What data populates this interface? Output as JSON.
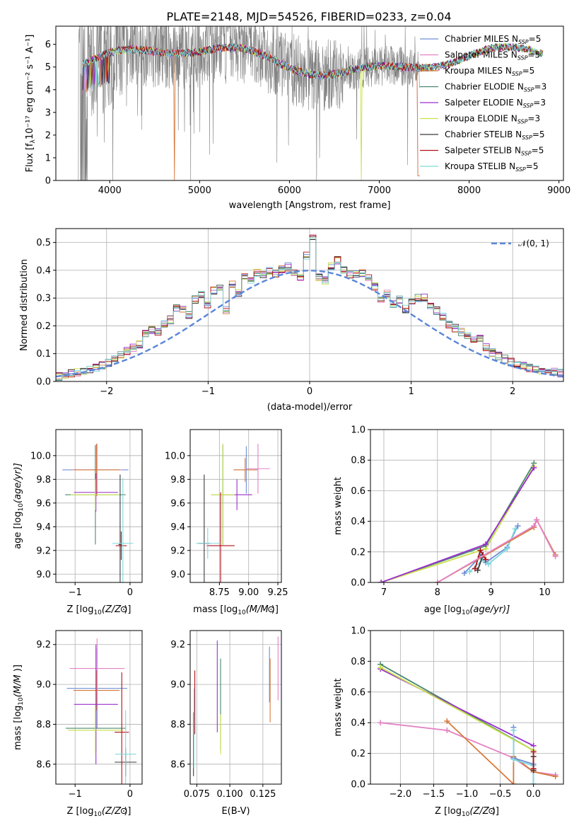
{
  "figure": {
    "title": "PLATE=2148, MJD=54526, FIBERID=0233, z=0.04"
  },
  "models": [
    {
      "name": "Chabrier MILES",
      "nssp": "5",
      "color": "#6d8fd8"
    },
    {
      "name": "Salpeter MILES",
      "nssp": "5",
      "color": "#e482c5"
    },
    {
      "name": "Kroupa MILES",
      "nssp": "5",
      "color": "#d7793a"
    },
    {
      "name": "Chabrier ELODIE",
      "nssp": "3",
      "color": "#4a8a70"
    },
    {
      "name": "Salpeter ELODIE",
      "nssp": "3",
      "color": "#9b2fcf"
    },
    {
      "name": "Kroupa ELODIE",
      "nssp": "3",
      "color": "#c9e04a"
    },
    {
      "name": "Chabrier STELIB",
      "nssp": "5",
      "color": "#3a3a3a"
    },
    {
      "name": "Salpeter STELIB",
      "nssp": "5",
      "color": "#b0101a"
    },
    {
      "name": "Kroupa STELIB",
      "nssp": "5",
      "color": "#7fd8dc"
    }
  ],
  "chart_data": [
    {
      "id": "spectrum",
      "type": "line",
      "title": "PLATE=2148, MJD=54526, FIBERID=0233, z=0.04",
      "xlabel": "wavelength [Angstrom, rest frame]",
      "ylabel_main": "Flux [f",
      "ylabel_sub": "λ",
      "ylabel_rest": "10⁻¹⁷ erg cm⁻² s⁻¹ A⁻¹]",
      "xlim": [
        3400,
        9050
      ],
      "ylim": [
        0,
        6.8
      ],
      "xticks": [
        "4000",
        "5000",
        "6000",
        "7000",
        "8000",
        "9000"
      ],
      "xtick_values": [
        4000,
        5000,
        6000,
        7000,
        8000,
        9000
      ],
      "yticks": [
        "0",
        "1",
        "2",
        "3",
        "4",
        "5",
        "6"
      ],
      "ytick_values": [
        0,
        1,
        2,
        3,
        4,
        5,
        6
      ],
      "data_color": "#808080",
      "data_range": [
        3650,
        7450
      ],
      "model_range": [
        3700,
        8820
      ],
      "legend_position": "upper right"
    },
    {
      "id": "residuals",
      "type": "line",
      "xlabel": "(data-model)/error",
      "ylabel": "Normed distribution",
      "xlim": [
        -2.5,
        2.5
      ],
      "ylim": [
        0,
        0.55
      ],
      "xticks": [
        "−2",
        "−1",
        "0",
        "1",
        "2"
      ],
      "xtick_values": [
        -2,
        -1,
        0,
        1,
        2
      ],
      "yticks": [
        "0.0",
        "0.1",
        "0.2",
        "0.3",
        "0.4",
        "0.5"
      ],
      "ytick_values": [
        0,
        0.1,
        0.2,
        0.3,
        0.4,
        0.5
      ],
      "bin_width": 0.1,
      "bin_start": -2.5,
      "histogram_reference": [
        0.018,
        0.022,
        0.03,
        0.033,
        0.036,
        0.04,
        0.048,
        0.058,
        0.066,
        0.078,
        0.094,
        0.108,
        0.122,
        0.132,
        0.172,
        0.185,
        0.178,
        0.205,
        0.222,
        0.262,
        0.255,
        0.236,
        0.295,
        0.312,
        0.278,
        0.326,
        0.342,
        0.258,
        0.35,
        0.318,
        0.376,
        0.36,
        0.392,
        0.382,
        0.398,
        0.388,
        0.402,
        0.412,
        0.392,
        0.375,
        0.452,
        0.52,
        0.372,
        0.362,
        0.412,
        0.435,
        0.398,
        0.386,
        0.384,
        0.388,
        0.372,
        0.342,
        0.298,
        0.315,
        0.278,
        0.294,
        0.262,
        0.282,
        0.3,
        0.302,
        0.268,
        0.255,
        0.232,
        0.205,
        0.192,
        0.178,
        0.164,
        0.15,
        0.152,
        0.125,
        0.103,
        0.092,
        0.08,
        0.07,
        0.062,
        0.058,
        0.05,
        0.045,
        0.04,
        0.038,
        0.034,
        0.03
      ],
      "gaussian_label": "𝒩(0, 1)",
      "gaussian_color": "#5b86d8",
      "legend_position": "upper right"
    },
    {
      "id": "age_vs_Z",
      "type": "scatter",
      "xlabel_main": "Z [log",
      "xlabel_sub": "10",
      "xlabel_rest": "(Z/Z",
      "xlabel_end": ")]",
      "ylabel_main": "age  [log",
      "ylabel_sub": "10",
      "ylabel_rest": "(age/yr)]",
      "xlim": [
        -1.35,
        0.22
      ],
      "ylim": [
        8.93,
        10.22
      ],
      "xticks": [
        "−1",
        "0"
      ],
      "xtick_values": [
        -1,
        0
      ],
      "yticks": [
        "9.0",
        "9.2",
        "9.4",
        "9.6",
        "9.8",
        "10.0"
      ],
      "ytick_values": [
        9.0,
        9.2,
        9.4,
        9.6,
        9.8,
        10.0
      ],
      "points": [
        {
          "model": 0,
          "x": -0.63,
          "xerr": 0.6,
          "y": 9.88,
          "yerr": 0.2
        },
        {
          "model": 1,
          "x": -0.6,
          "xerr": 0.45,
          "y": 9.88,
          "yerr": 0.22
        },
        {
          "model": 2,
          "x": -0.61,
          "xerr": 0.42,
          "y": 9.88,
          "yerr": 0.22
        },
        {
          "model": 3,
          "x": -0.63,
          "xerr": 0.55,
          "y": 9.67,
          "yerr": 0.42
        },
        {
          "model": 4,
          "x": -0.62,
          "xerr": 0.4,
          "y": 9.69,
          "yerr": 0.16
        },
        {
          "model": 5,
          "x": -0.63,
          "xerr": 0.45,
          "y": 9.67,
          "yerr": 0.13
        },
        {
          "model": 6,
          "x": -0.18,
          "xerr": 0.03,
          "y": 9.25,
          "yerr": 0.59
        },
        {
          "model": 7,
          "x": -0.16,
          "xerr": 0.1,
          "y": 9.24,
          "yerr": 0.12
        },
        {
          "model": 8,
          "x": -0.13,
          "xerr": 0.19,
          "y": 9.26,
          "yerr": 0.55
        }
      ]
    },
    {
      "id": "age_vs_mass",
      "type": "scatter",
      "xlabel_main": "mass [log",
      "xlabel_sub": "10",
      "xlabel_rest": "(M/M",
      "xlabel_end": ")]",
      "xlim": [
        8.5,
        9.28
      ],
      "ylim": [
        8.93,
        10.22
      ],
      "xticks": [
        "8.75",
        "9.00",
        "9.25"
      ],
      "xtick_values": [
        8.75,
        9.0,
        9.25
      ],
      "yticks": [
        "9.0",
        "9.2",
        "9.4",
        "9.6",
        "9.8",
        "10.0"
      ],
      "ytick_values": [
        9.0,
        9.2,
        9.4,
        9.6,
        9.8,
        10.0
      ],
      "points": [
        {
          "model": 0,
          "x": 8.98,
          "xerr": 0.1,
          "y": 9.88,
          "yerr": 0.2
        },
        {
          "model": 1,
          "x": 9.08,
          "xerr": 0.1,
          "y": 9.89,
          "yerr": 0.21
        },
        {
          "model": 2,
          "x": 8.97,
          "xerr": 0.1,
          "y": 9.88,
          "yerr": 0.1
        },
        {
          "model": 3,
          "x": 8.78,
          "xerr": 0.1,
          "y": 9.67,
          "yerr": 0.42
        },
        {
          "model": 4,
          "x": 8.9,
          "xerr": 0.13,
          "y": 9.67,
          "yerr": 0.13
        },
        {
          "model": 5,
          "x": 8.78,
          "xerr": 0.1,
          "y": 9.67,
          "yerr": 0.43
        },
        {
          "model": 6,
          "x": 8.62,
          "xerr": 0.05,
          "y": 9.26,
          "yerr": 0.58
        },
        {
          "model": 7,
          "x": 8.76,
          "xerr": 0.12,
          "y": 9.24,
          "yerr": 0.45
        },
        {
          "model": 8,
          "x": 8.65,
          "xerr": 0.1,
          "y": 9.26,
          "yerr": 0.13
        }
      ]
    },
    {
      "id": "weight_vs_age",
      "type": "line",
      "xlabel_main": "age  [log",
      "xlabel_sub": "10",
      "xlabel_rest": "(age/yr)]",
      "ylabel": "mass weight",
      "xlim": [
        6.75,
        10.35
      ],
      "ylim": [
        0,
        1
      ],
      "xticks": [
        "7",
        "8",
        "9",
        "10"
      ],
      "xtick_values": [
        7,
        8,
        9,
        10
      ],
      "yticks": [
        "0.0",
        "0.2",
        "0.4",
        "0.6",
        "0.8",
        "1.0"
      ],
      "ytick_values": [
        0,
        0.2,
        0.4,
        0.6,
        0.8,
        1.0
      ],
      "series": [
        {
          "model": 3,
          "x": [
            6.95,
            8.9,
            9.8
          ],
          "y": [
            0.0,
            0.24,
            0.78
          ]
        },
        {
          "model": 5,
          "x": [
            6.95,
            8.9,
            9.8
          ],
          "y": [
            0.0,
            0.22,
            0.76
          ]
        },
        {
          "model": 4,
          "x": [
            6.95,
            8.9,
            9.8
          ],
          "y": [
            0.0,
            0.25,
            0.75
          ]
        },
        {
          "model": 0,
          "x": [
            8.5,
            8.8,
            8.9,
            9.3,
            9.5
          ],
          "y": [
            0.06,
            0.17,
            0.13,
            0.23,
            0.37
          ]
        },
        {
          "model": 8,
          "x": [
            8.6,
            8.85,
            8.95,
            9.3,
            9.45
          ],
          "y": [
            0.07,
            0.15,
            0.12,
            0.22,
            0.35
          ]
        },
        {
          "model": 6,
          "x": [
            8.75,
            8.85
          ],
          "y": [
            0.08,
            0.18
          ]
        },
        {
          "model": 7,
          "x": [
            8.7,
            8.8,
            8.9
          ],
          "y": [
            0.09,
            0.21,
            0.15
          ]
        },
        {
          "model": 2,
          "x": [
            8.0,
            9.8,
            9.85,
            10.2
          ],
          "y": [
            0.0,
            0.36,
            0.41,
            0.18
          ]
        },
        {
          "model": 1,
          "x": [
            8.0,
            9.8,
            9.85,
            10.2
          ],
          "y": [
            0.0,
            0.37,
            0.41,
            0.17
          ]
        }
      ]
    },
    {
      "id": "mass_vs_Z",
      "type": "scatter",
      "xlabel_main": "Z [log",
      "xlabel_sub": "10",
      "xlabel_rest": "(Z/Z",
      "xlabel_end": ")]",
      "ylabel_main": "mass [log",
      "ylabel_sub": "10",
      "ylabel_rest": "(M/M",
      "ylabel_end": ")]",
      "xlim": [
        -1.35,
        0.22
      ],
      "ylim": [
        8.5,
        9.27
      ],
      "xticks": [
        "−1",
        "0"
      ],
      "xtick_values": [
        -1,
        0
      ],
      "yticks": [
        "8.6",
        "8.8",
        "9.0",
        "9.2"
      ],
      "ytick_values": [
        8.6,
        8.8,
        9.0,
        9.2
      ],
      "points": [
        {
          "model": 0,
          "x": -0.6,
          "xerr": 0.55,
          "y": 8.98,
          "yerr": 0.2
        },
        {
          "model": 1,
          "x": -0.6,
          "xerr": 0.5,
          "y": 9.08,
          "yerr": 0.15
        },
        {
          "model": 2,
          "x": -0.61,
          "xerr": 0.42,
          "y": 8.97,
          "yerr": 0.1
        },
        {
          "model": 3,
          "x": -0.62,
          "xerr": 0.55,
          "y": 8.78,
          "yerr": 0.12
        },
        {
          "model": 4,
          "x": -0.62,
          "xerr": 0.4,
          "y": 8.9,
          "yerr": 0.3
        },
        {
          "model": 5,
          "x": -0.63,
          "xerr": 0.5,
          "y": 8.77,
          "yerr": 0.12
        },
        {
          "model": 6,
          "x": -0.08,
          "xerr": 0.2,
          "y": 8.61,
          "yerr": 0.07
        },
        {
          "model": 7,
          "x": -0.15,
          "xerr": 0.13,
          "y": 8.76,
          "yerr": 0.3
        },
        {
          "model": 8,
          "x": -0.08,
          "xerr": 0.19,
          "y": 8.65,
          "yerr": 0.22
        }
      ]
    },
    {
      "id": "mass_vs_ebv",
      "type": "scatter",
      "xlabel": "E(B-V)",
      "xlim": [
        0.07,
        0.139
      ],
      "ylim": [
        8.5,
        9.27
      ],
      "xticks": [
        "0.075",
        "0.100",
        "0.125"
      ],
      "xtick_values": [
        0.075,
        0.1,
        0.125
      ],
      "yticks": [
        "8.6",
        "8.8",
        "9.0",
        "9.2"
      ],
      "ytick_values": [
        8.6,
        8.8,
        9.0,
        9.2
      ],
      "points": [
        {
          "model": 0,
          "x": 0.13,
          "xerr": 0.0,
          "y": 9.05,
          "yerr": 0.14
        },
        {
          "model": 1,
          "x": 0.1365,
          "xerr": 0.0,
          "y": 9.08,
          "yerr": 0.16
        },
        {
          "model": 2,
          "x": 0.1305,
          "xerr": 0.0,
          "y": 8.97,
          "yerr": 0.16
        },
        {
          "model": 3,
          "x": 0.093,
          "xerr": 0.0,
          "y": 8.9,
          "yerr": 0.23
        },
        {
          "model": 4,
          "x": 0.0905,
          "xerr": 0.0,
          "y": 8.99,
          "yerr": 0.23
        },
        {
          "model": 5,
          "x": 0.093,
          "xerr": 0.0,
          "y": 8.75,
          "yerr": 0.1
        },
        {
          "model": 6,
          "x": 0.0725,
          "xerr": 0.0,
          "y": 8.7,
          "yerr": 0.16
        },
        {
          "model": 7,
          "x": 0.0735,
          "xerr": 0.0,
          "y": 8.91,
          "yerr": 0.16
        },
        {
          "model": 8,
          "x": 0.0728,
          "xerr": 0.0,
          "y": 8.78,
          "yerr": 0.2
        }
      ]
    },
    {
      "id": "weight_vs_Z",
      "type": "line",
      "xlabel_main": "Z [log",
      "xlabel_sub": "10",
      "xlabel_rest": "(Z/Z",
      "xlabel_end": ")]",
      "ylabel": "mass weight",
      "xlim": [
        -2.45,
        0.45
      ],
      "ylim": [
        0,
        1
      ],
      "xticks": [
        "−2.0",
        "−1.5",
        "−1.0",
        "−0.5",
        "0.0"
      ],
      "xtick_values": [
        -2.0,
        -1.5,
        -1.0,
        -0.5,
        0.0
      ],
      "yticks": [
        "0.0",
        "0.2",
        "0.4",
        "0.6",
        "0.8",
        "1.0"
      ],
      "ytick_values": [
        0,
        0.2,
        0.4,
        0.6,
        0.8,
        1.0
      ],
      "series": [
        {
          "model": 3,
          "x": [
            -2.3,
            0.0
          ],
          "y": [
            0.78,
            0.22
          ]
        },
        {
          "model": 4,
          "x": [
            -2.3,
            0.0
          ],
          "y": [
            0.75,
            0.25
          ]
        },
        {
          "model": 5,
          "x": [
            -2.3,
            0.0,
            0.0
          ],
          "y": [
            0.76,
            0.22,
            0.0
          ]
        },
        {
          "model": 1,
          "x": [
            -2.3,
            -1.3,
            -0.3,
            0.0,
            0.33
          ],
          "y": [
            0.4,
            0.35,
            0.17,
            0.08,
            0.06
          ]
        },
        {
          "model": 2,
          "x": [
            -1.3,
            -0.3,
            -0.3,
            0.0,
            0.33
          ],
          "y": [
            0.41,
            0.0,
            0.18,
            0.08,
            0.05
          ]
        },
        {
          "model": 0,
          "x": [
            -0.3,
            -0.3,
            0.0,
            0.0
          ],
          "y": [
            0.37,
            0.17,
            0.13,
            0.0
          ]
        },
        {
          "model": 8,
          "x": [
            -0.3,
            -0.3,
            0.0,
            0.0
          ],
          "y": [
            0.35,
            0.16,
            0.12,
            0.0
          ]
        },
        {
          "model": 6,
          "x": [
            0.0,
            0.0
          ],
          "y": [
            0.18,
            0.09
          ]
        },
        {
          "model": 7,
          "x": [
            0.0,
            0.0
          ],
          "y": [
            0.21,
            0.1
          ]
        }
      ]
    }
  ]
}
